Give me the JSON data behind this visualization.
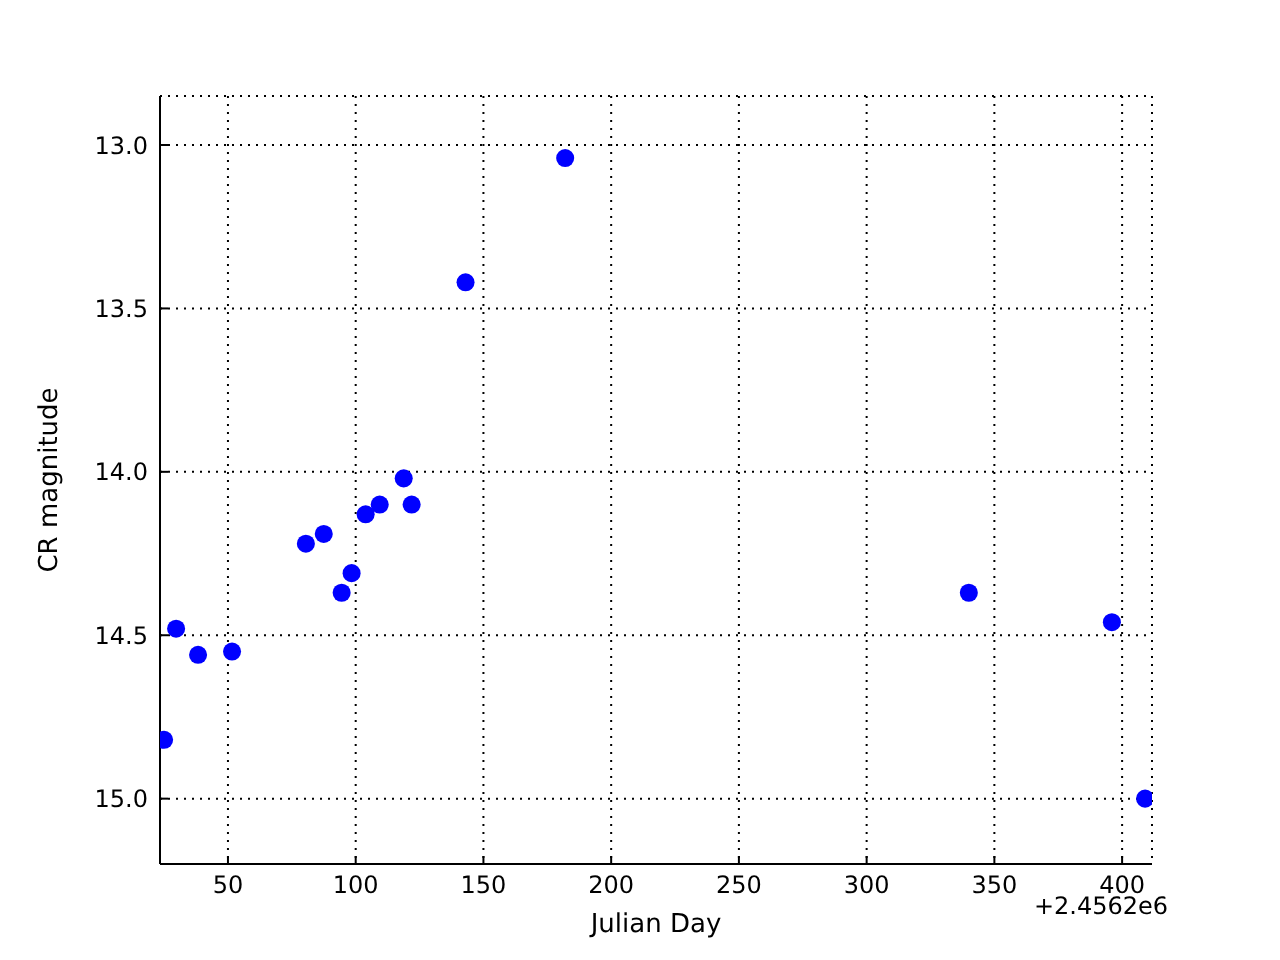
{
  "chart_data": {
    "type": "scatter",
    "xlabel": "Julian Day",
    "ylabel": "CR magnitude",
    "annotations": [
      "+2.4562e6"
    ],
    "x": [
      25,
      29.7,
      38.3,
      51.6,
      80.5,
      87.5,
      94.5,
      98.4,
      103.9,
      109.4,
      118.8,
      121.9,
      143,
      182,
      340,
      396,
      409
    ],
    "series": [
      {
        "color": "#0000ff",
        "values": [
          14.82,
          14.48,
          14.56,
          14.55,
          14.22,
          14.19,
          14.37,
          14.31,
          14.13,
          14.1,
          14.02,
          14.1,
          13.42,
          13.04,
          14.37,
          14.46,
          15.0
        ]
      }
    ],
    "xlim": [
      23.4,
      411.7
    ],
    "xticks": [
      50,
      100,
      150,
      200,
      250,
      300,
      350,
      400
    ],
    "ylim": [
      15.2,
      12.85
    ],
    "yticks": [
      {
        "value": 13,
        "label": "13.0"
      },
      {
        "value": 13.5,
        "label": "13.5"
      },
      {
        "value": 14,
        "label": "14.0"
      },
      {
        "value": 14.5,
        "label": "14.5"
      },
      {
        "value": 15,
        "label": "15.0"
      }
    ],
    "grid": true,
    "marker": "circle"
  }
}
